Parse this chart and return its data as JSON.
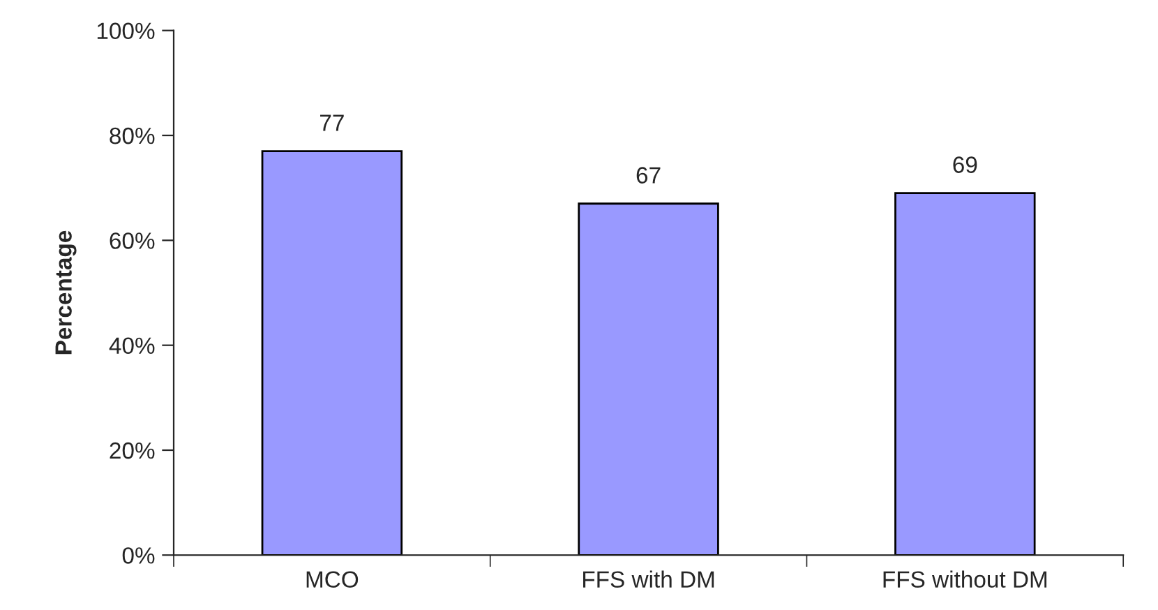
{
  "chart_data": {
    "type": "bar",
    "ylabel": "Percentage",
    "categories": [
      "MCO",
      "FFS with DM",
      "FFS without DM"
    ],
    "values": [
      77,
      67,
      69
    ],
    "color": "#9999ff",
    "ylim": [
      0,
      100
    ],
    "yticks": [
      {
        "value": 0,
        "label": "0%"
      },
      {
        "value": 20,
        "label": "20%"
      },
      {
        "value": 40,
        "label": "40%"
      },
      {
        "value": 60,
        "label": "60%"
      },
      {
        "value": 80,
        "label": "80%"
      },
      {
        "value": 100,
        "label": "100%"
      }
    ],
    "data_labels": true,
    "grid": false,
    "legend": false
  }
}
